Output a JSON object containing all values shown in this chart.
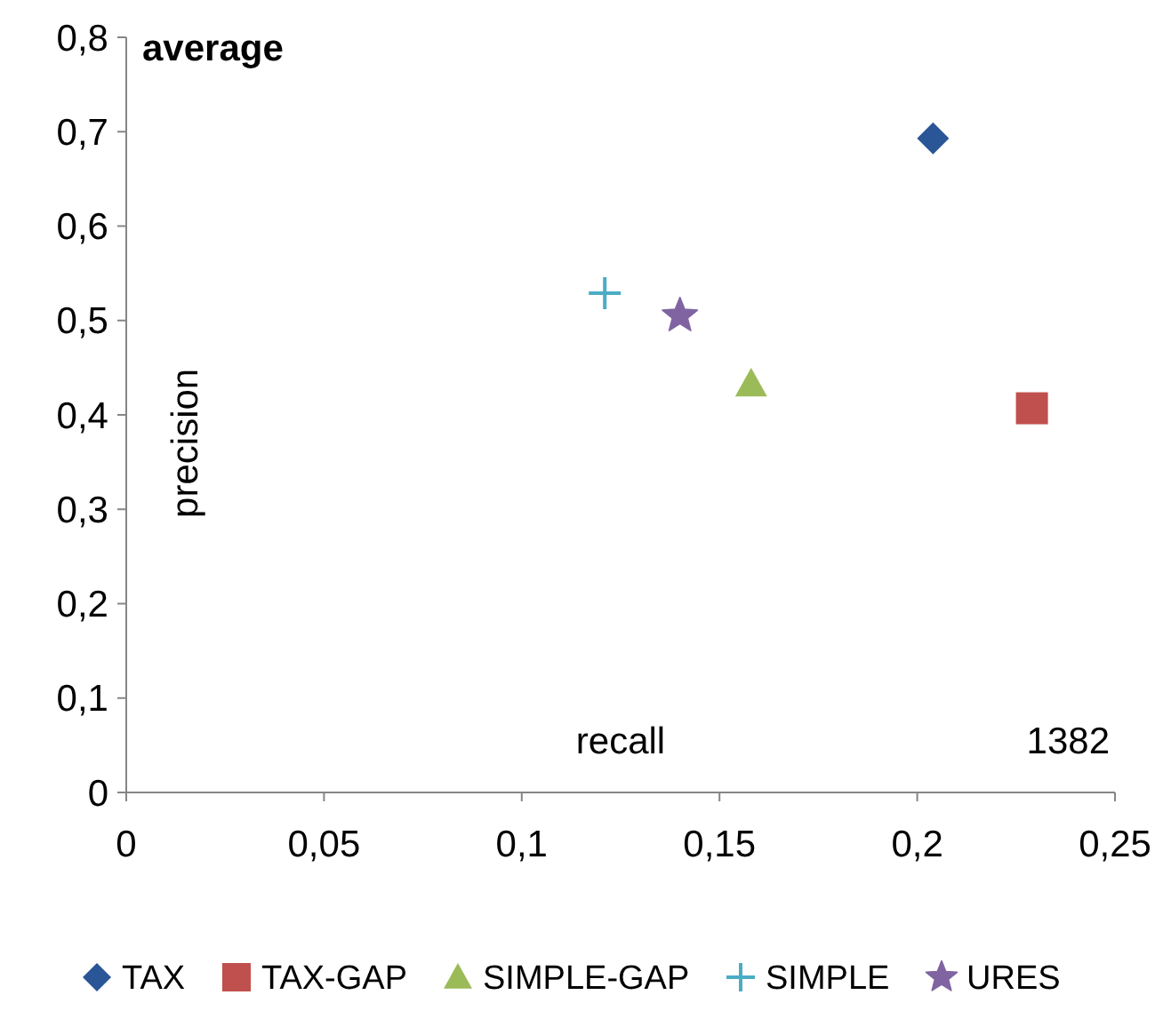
{
  "chart_data": {
    "type": "scatter",
    "xlabel": "recall",
    "ylabel": "precision",
    "annotations": [
      "average",
      "1382"
    ],
    "xlim": [
      0,
      0.25
    ],
    "ylim": [
      0,
      0.8
    ],
    "xticks": [
      {
        "value": 0,
        "label": "0"
      },
      {
        "value": 0.05,
        "label": "0,05"
      },
      {
        "value": 0.1,
        "label": "0,1"
      },
      {
        "value": 0.15,
        "label": "0,15"
      },
      {
        "value": 0.2,
        "label": "0,2"
      },
      {
        "value": 0.25,
        "label": "0,25"
      }
    ],
    "yticks": [
      {
        "value": 0,
        "label": "0"
      },
      {
        "value": 0.1,
        "label": "0,1"
      },
      {
        "value": 0.2,
        "label": "0,2"
      },
      {
        "value": 0.3,
        "label": "0,3"
      },
      {
        "value": 0.4,
        "label": "0,4"
      },
      {
        "value": 0.5,
        "label": "0,5"
      },
      {
        "value": 0.6,
        "label": "0,6"
      },
      {
        "value": 0.7,
        "label": "0,7"
      },
      {
        "value": 0.8,
        "label": "0,8"
      }
    ],
    "grid": false,
    "legend": "bottom",
    "series": [
      {
        "name": "TAX",
        "color": "#2a5597",
        "marker": "diamond",
        "x": [
          0.204
        ],
        "values": [
          0.693
        ]
      },
      {
        "name": "TAX-GAP",
        "color": "#c0504d",
        "marker": "square",
        "x": [
          0.229
        ],
        "values": [
          0.407
        ]
      },
      {
        "name": "SIMPLE-GAP",
        "color": "#9bbb59",
        "marker": "triangle",
        "x": [
          0.158
        ],
        "values": [
          0.433
        ]
      },
      {
        "name": "SIMPLE",
        "color": "#4bacc6",
        "marker": "cross",
        "x": [
          0.121
        ],
        "values": [
          0.529
        ]
      },
      {
        "name": "URES",
        "color": "#8064a2",
        "marker": "star",
        "x": [
          0.14
        ],
        "values": [
          0.505
        ]
      }
    ]
  }
}
